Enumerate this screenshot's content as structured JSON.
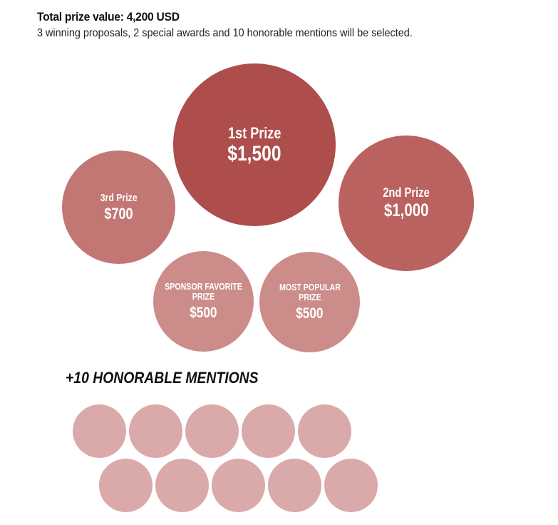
{
  "header": {
    "title": "Total prize value: 4,200 USD",
    "subtitle": "3 winning proposals, 2 special awards and 10 honorable mentions will be selected."
  },
  "prizes": [
    {
      "label": "1st Prize",
      "amount": "$1,500",
      "color": "#ad4e4c"
    },
    {
      "label": "2nd Prize",
      "amount": "$1,000",
      "color": "#b96260"
    },
    {
      "label": "3rd Prize",
      "amount": "$700",
      "color": "#c27775"
    },
    {
      "label": "SPONSOR FAVORITE PRIZE",
      "amount": "$500",
      "color": "#cc8c8a"
    },
    {
      "label": "MOST POPULAR PRIZE",
      "amount": "$500",
      "color": "#cc8c8a"
    }
  ],
  "mentions": {
    "heading": "+10 HONORABLE MENTIONS",
    "count": 10,
    "color": "#daa9a9"
  }
}
